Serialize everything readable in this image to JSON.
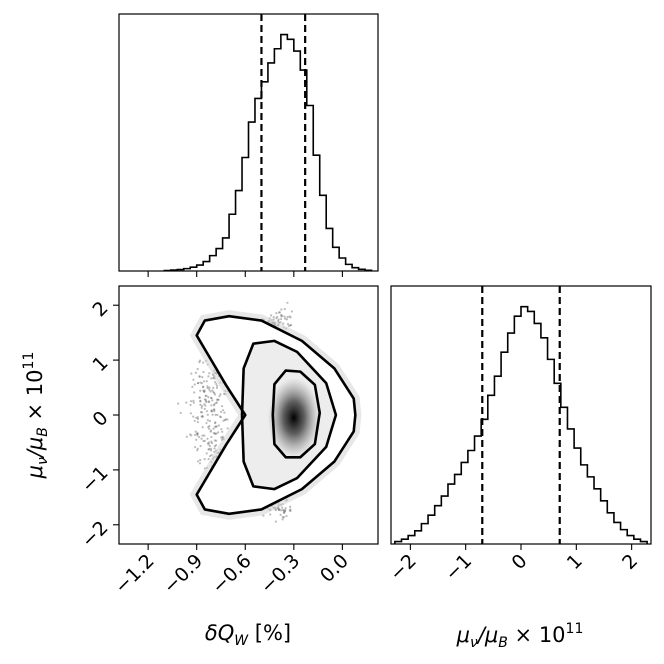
{
  "chart_data": {
    "type": "corner",
    "parameters": [
      "dQW",
      "mu"
    ],
    "marginals": [
      {
        "parameter": "dQW",
        "xlim": [
          -1.38,
          0.22
        ],
        "bin_width": 0.04,
        "bin_starts": [
          -1.1,
          -1.06,
          -1.02,
          -0.98,
          -0.94,
          -0.9,
          -0.86,
          -0.82,
          -0.78,
          -0.74,
          -0.7,
          -0.66,
          -0.62,
          -0.58,
          -0.54,
          -0.5,
          -0.46,
          -0.42,
          -0.38,
          -0.34,
          -0.3,
          -0.26,
          -0.22,
          -0.18,
          -0.14,
          -0.1,
          -0.06,
          -0.02,
          0.02,
          0.06,
          0.1,
          0.14
        ],
        "counts": [
          0.2,
          0.4,
          0.6,
          1,
          1.6,
          2.5,
          4,
          6.5,
          9.5,
          14,
          24,
          34,
          48,
          63,
          73,
          80,
          88,
          94,
          100,
          98,
          93,
          85,
          70,
          49,
          32,
          18,
          10,
          5.5,
          2.8,
          1.4,
          0.7,
          0.3
        ],
        "quantiles": [
          -0.5,
          -0.23
        ]
      },
      {
        "parameter": "mu",
        "xlim": [
          -2.35,
          2.35
        ],
        "bin_width": 0.12,
        "bin_starts": [
          -2.28,
          -2.16,
          -2.04,
          -1.92,
          -1.8,
          -1.68,
          -1.56,
          -1.44,
          -1.32,
          -1.2,
          -1.08,
          -0.96,
          -0.84,
          -0.72,
          -0.6,
          -0.48,
          -0.36,
          -0.24,
          -0.12,
          0.0,
          0.12,
          0.24,
          0.36,
          0.48,
          0.6,
          0.72,
          0.84,
          0.96,
          1.08,
          1.2,
          1.32,
          1.44,
          1.56,
          1.68,
          1.8,
          1.92,
          2.04,
          2.16
        ],
        "counts": [
          1,
          2,
          3.5,
          5.5,
          8.5,
          12,
          16,
          20,
          25,
          29,
          34,
          39,
          45,
          52,
          62,
          70,
          80,
          88,
          95,
          99,
          97,
          92,
          86,
          77,
          67,
          57,
          48,
          40,
          33,
          28,
          23,
          18,
          13,
          9,
          6,
          3.5,
          2,
          1
        ],
        "quantiles": [
          -0.7,
          0.7
        ]
      }
    ],
    "joint": {
      "x_parameter": "dQW",
      "y_parameter": "mu",
      "xlim": [
        -1.38,
        0.22
      ],
      "ylim": [
        -2.35,
        2.35
      ],
      "contours": [
        {
          "level": "inner",
          "points": [
            [
              -0.43,
              0.0
            ],
            [
              -0.42,
              0.56
            ],
            [
              -0.35,
              0.81
            ],
            [
              -0.26,
              0.79
            ],
            [
              -0.17,
              0.55
            ],
            [
              -0.14,
              0.04
            ],
            [
              -0.17,
              -0.53
            ],
            [
              -0.26,
              -0.77
            ],
            [
              -0.35,
              -0.77
            ],
            [
              -0.42,
              -0.53
            ]
          ]
        },
        {
          "level": "middle",
          "points": [
            [
              -0.62,
              0.0
            ],
            [
              -0.61,
              0.85
            ],
            [
              -0.55,
              1.3
            ],
            [
              -0.42,
              1.35
            ],
            [
              -0.28,
              1.15
            ],
            [
              -0.1,
              0.58
            ],
            [
              -0.04,
              0.0
            ],
            [
              -0.1,
              -0.58
            ],
            [
              -0.28,
              -1.15
            ],
            [
              -0.42,
              -1.35
            ],
            [
              -0.55,
              -1.3
            ],
            [
              -0.61,
              -0.85
            ]
          ]
        },
        {
          "level": "outer",
          "points": [
            [
              -0.6,
              0.0
            ],
            [
              -0.72,
              0.55
            ],
            [
              -0.83,
              1.1
            ],
            [
              -0.9,
              1.45
            ],
            [
              -0.85,
              1.72
            ],
            [
              -0.7,
              1.8
            ],
            [
              -0.5,
              1.72
            ],
            [
              -0.25,
              1.35
            ],
            [
              -0.05,
              0.85
            ],
            [
              0.07,
              0.3
            ],
            [
              0.08,
              0.0
            ],
            [
              0.07,
              -0.3
            ],
            [
              -0.05,
              -0.85
            ],
            [
              -0.25,
              -1.35
            ],
            [
              -0.5,
              -1.72
            ],
            [
              -0.7,
              -1.8
            ],
            [
              -0.85,
              -1.72
            ],
            [
              -0.9,
              -1.45
            ],
            [
              -0.83,
              -1.1
            ],
            [
              -0.72,
              -0.55
            ]
          ]
        }
      ],
      "density_peak": [
        -0.3,
        -0.05
      ]
    },
    "ticks": {
      "dQW": {
        "values": [
          -1.2,
          -0.9,
          -0.6,
          -0.3,
          0.0
        ],
        "labels": [
          "−1.2",
          "−0.9",
          "−0.6",
          "−0.3",
          "0.0"
        ]
      },
      "mu": {
        "values": [
          -2,
          -1,
          0,
          1,
          2
        ],
        "labels": [
          "−2",
          "−1",
          "0",
          "1",
          "2"
        ]
      }
    },
    "axis_labels": {
      "dQW": "δQ",
      "dQW_sub": "W",
      "dQW_unit": " [%]",
      "mu_a": "μ",
      "mu_a_sub": "ν",
      "mu_slash": "/μ",
      "mu_b_sub": "B",
      "mu_times": " × 10",
      "mu_exp": "11"
    }
  }
}
